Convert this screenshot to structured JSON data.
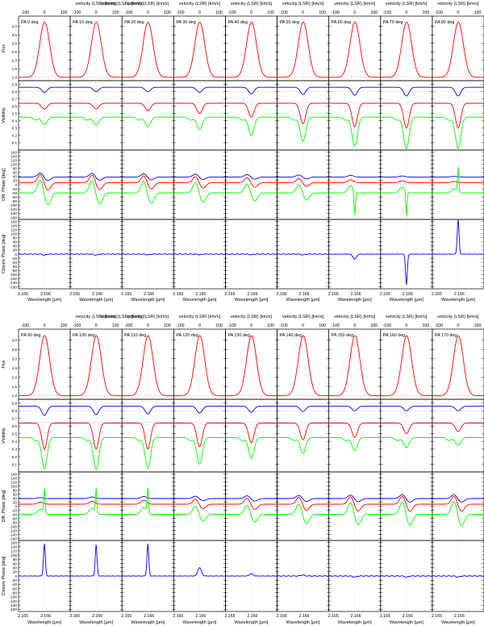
{
  "figure": {
    "top_axis_label": "velocity (LSR) [km/s]",
    "bottom_axis_label": "Wavelength [µm]",
    "row_labels": [
      "Flux",
      "Visibility",
      "Diff. Phase [deg]",
      "Closure Phase [deg]"
    ]
  },
  "chart_data": {
    "type": "line",
    "title": "",
    "blocks": [
      {
        "pa_labels": [
          "PA 0 deg",
          "PA 10 deg",
          "PA 20 deg",
          "PA 30 deg",
          "PA 40 deg",
          "PA 50 deg",
          "PA 60 deg",
          "PA 70 deg",
          "PA 80 deg"
        ]
      },
      {
        "pa_labels": [
          "PA 90 deg",
          "PA 100 deg",
          "PA 110 deg",
          "PA 120 deg",
          "PA 130 deg",
          "PA 140 deg",
          "PA 150 deg",
          "PA 160 deg",
          "PA 170 deg"
        ]
      }
    ],
    "position_angles_deg": [
      0,
      10,
      20,
      30,
      40,
      50,
      60,
      70,
      80,
      90,
      100,
      110,
      120,
      130,
      140,
      150,
      160,
      170
    ],
    "x_wavelength_ticks": [
      "2.165",
      "2.166"
    ],
    "x_velocity_ticks": [
      "-100",
      "0",
      "100"
    ],
    "xlim_um": [
      2.1648,
      2.1671
    ],
    "rows": [
      {
        "name": "Flux",
        "ylim": [
          0.8,
          4.6
        ],
        "ticks": [
          "1.0",
          "1.5",
          "2.0",
          "2.5",
          "3.0",
          "3.5",
          "4.0"
        ],
        "series": [
          {
            "color": "#ff0000",
            "continuum": 1.0,
            "peak": 4.25,
            "peak_wavelength_um": 2.16596
          }
        ]
      },
      {
        "name": "Visibility",
        "ylim": [
          0,
          0.95
        ],
        "ticks": [
          "0",
          "0.1",
          "0.2",
          "0.3",
          "0.4",
          "0.5",
          "0.6",
          "0.7",
          "0.8",
          "0.9"
        ],
        "series": [
          {
            "color": "#0000ff",
            "continuum": 0.86,
            "min_by_pa": [
              0.79,
              0.8,
              0.8,
              0.79,
              0.77,
              0.76,
              0.75,
              0.74,
              0.74,
              0.74,
              0.75,
              0.76,
              0.77,
              0.78,
              0.79,
              0.8,
              0.8,
              0.8
            ]
          },
          {
            "color": "#ff0000",
            "continuum": 0.64,
            "min_by_pa": [
              0.56,
              0.56,
              0.54,
              0.5,
              0.45,
              0.36,
              0.32,
              0.3,
              0.3,
              0.3,
              0.3,
              0.3,
              0.33,
              0.38,
              0.42,
              0.45,
              0.5,
              0.53
            ]
          },
          {
            "color": "#00ff00",
            "continuum": 0.45,
            "min_by_pa": [
              0.35,
              0.34,
              0.32,
              0.28,
              0.2,
              0.12,
              0.05,
              0.02,
              0.02,
              0.04,
              0.03,
              0.05,
              0.1,
              0.18,
              0.24,
              0.28,
              0.32,
              0.35
            ]
          }
        ]
      },
      {
        "name": "Diff. Phase [deg]",
        "ylim": [
          -170,
          170
        ],
        "ticks": [
          "-160",
          "-140",
          "-120",
          "-100",
          "-80",
          "-60",
          "-40",
          "-20",
          "0",
          "20",
          "40",
          "60",
          "80",
          "100",
          "120",
          "140",
          "160"
        ],
        "series": [
          {
            "color": "#0000ff",
            "continuum": 38,
            "amp_by_pa": [
              20,
              18,
              16,
              14,
              12,
              10,
              8,
              5,
              3,
              5,
              8,
              10,
              12,
              14,
              16,
              18,
              20,
              20
            ]
          },
          {
            "color": "#ff0000",
            "continuum": 10,
            "amp_by_pa": [
              40,
              38,
              35,
              30,
              25,
              20,
              15,
              10,
              6,
              10,
              15,
              20,
              25,
              30,
              35,
              38,
              40,
              40
            ]
          },
          {
            "color": "#00ff00",
            "continuum": -40,
            "amp_by_pa": [
              65,
              62,
              58,
              52,
              45,
              40,
              35,
              30,
              20,
              25,
              30,
              35,
              40,
              45,
              52,
              58,
              62,
              65
            ]
          }
        ]
      },
      {
        "name": "Closure Phase [deg]",
        "ylim": [
          -170,
          170
        ],
        "ticks": [
          "-160",
          "-140",
          "-120",
          "-100",
          "-80",
          "-60",
          "-40",
          "-20",
          "0",
          "20",
          "40",
          "60",
          "80",
          "100",
          "120",
          "140",
          "160"
        ],
        "series": [
          {
            "color": "#0000ff",
            "continuum": 0,
            "feature_by_pa": [
              -5,
              -5,
              -3,
              -3,
              -3,
              -4,
              -25,
              -150,
              170,
              155,
              150,
              155,
              40,
              10,
              5,
              -5,
              -5,
              -5
            ]
          }
        ]
      }
    ]
  }
}
